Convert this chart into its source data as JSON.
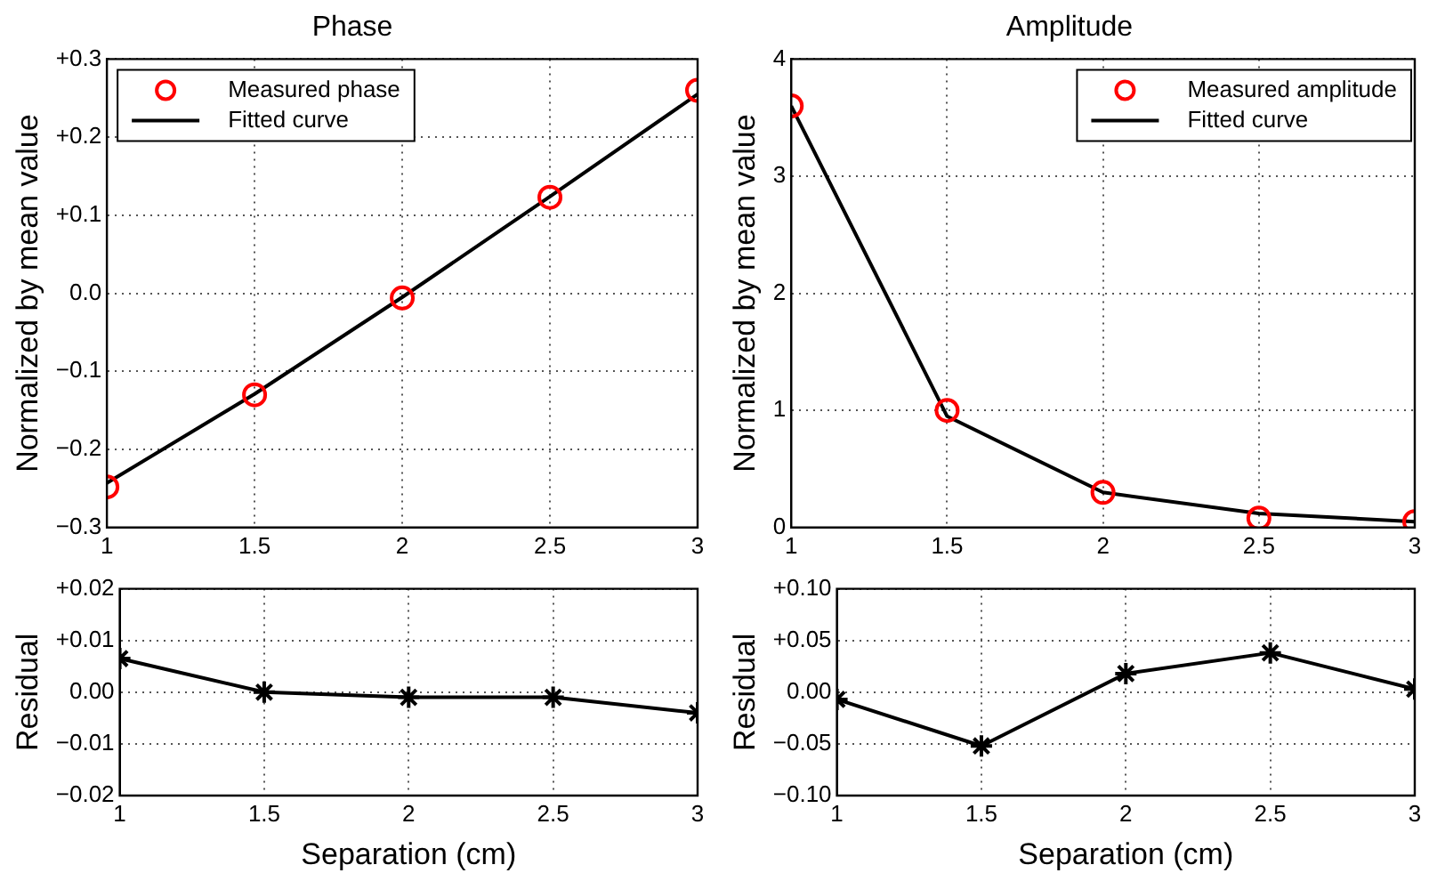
{
  "chart_data": [
    {
      "type": "line",
      "title": "Phase",
      "ylabel": "Normalized by mean value",
      "x": [
        1,
        1.5,
        2,
        2.5,
        3
      ],
      "xlim": [
        1,
        3
      ],
      "xticks": [
        1,
        1.5,
        2,
        2.5,
        3
      ],
      "ylim": [
        -0.3,
        0.3
      ],
      "yticks": [
        {
          "value": -0.3,
          "label": "−0.3"
        },
        {
          "value": -0.2,
          "label": "−0.2"
        },
        {
          "value": -0.1,
          "label": "−0.1"
        },
        {
          "value": 0,
          "label": "0.0"
        },
        {
          "value": 0.1,
          "label": "+0.1"
        },
        {
          "value": 0.2,
          "label": "+0.2"
        },
        {
          "value": 0.3,
          "label": "+0.3"
        }
      ],
      "grid": true,
      "legend": "top left",
      "series": [
        {
          "name": "Measured phase",
          "type": "scatter",
          "marker": "circle",
          "color": "#ff0000",
          "values": [
            -0.248,
            -0.13,
            -0.006,
            0.123,
            0.26
          ]
        },
        {
          "name": "Fitted curve",
          "type": "line",
          "marker": "none",
          "line_style": "solid",
          "color": "#000000",
          "values": [
            -0.243,
            -0.129,
            -0.005,
            0.124,
            0.255
          ]
        }
      ]
    },
    {
      "type": "line",
      "title": "Amplitude",
      "ylabel": "Normalized by mean value",
      "x": [
        1,
        1.5,
        2,
        2.5,
        3
      ],
      "xlim": [
        1,
        3
      ],
      "xticks": [
        1,
        1.5,
        2,
        2.5,
        3
      ],
      "ylim": [
        0,
        4
      ],
      "yticks": [
        0,
        1,
        2,
        3,
        4
      ],
      "grid": true,
      "legend": "top right",
      "series": [
        {
          "name": "Measured amplitude",
          "type": "scatter",
          "marker": "circle",
          "color": "#ff0000",
          "values": [
            3.6,
            1.0,
            0.3,
            0.08,
            0.05
          ]
        },
        {
          "name": "Fitted curve",
          "type": "line",
          "marker": "none",
          "line_style": "solid",
          "color": "#000000",
          "values": [
            3.6,
            0.95,
            0.3,
            0.12,
            0.05
          ]
        }
      ]
    },
    {
      "type": "line",
      "xlabel": "Separation (cm)",
      "ylabel": "Residual",
      "x": [
        1,
        1.5,
        2,
        2.5,
        3
      ],
      "xlim": [
        1,
        3
      ],
      "xticks": [
        1,
        1.5,
        2,
        2.5,
        3
      ],
      "ylim": [
        -0.02,
        0.02
      ],
      "yticks": [
        {
          "value": -0.02,
          "label": "−0.02"
        },
        {
          "value": -0.01,
          "label": "−0.01"
        },
        {
          "value": 0,
          "label": "0.00"
        },
        {
          "value": 0.01,
          "label": "+0.01"
        },
        {
          "value": 0.02,
          "label": "+0.02"
        }
      ],
      "grid": true,
      "series": [
        {
          "type": "line",
          "marker": "cross",
          "line_style": "solid",
          "color": "#000000",
          "values": [
            0.0065,
            0.0,
            -0.001,
            -0.001,
            -0.004
          ]
        }
      ]
    },
    {
      "type": "line",
      "xlabel": "Separation (cm)",
      "ylabel": "Residual",
      "x": [
        1,
        1.5,
        2,
        2.5,
        3
      ],
      "xlim": [
        1,
        3
      ],
      "xticks": [
        1,
        1.5,
        2,
        2.5,
        3
      ],
      "ylim": [
        -0.1,
        0.1
      ],
      "yticks": [
        {
          "value": -0.1,
          "label": "−0.10"
        },
        {
          "value": -0.05,
          "label": "−0.05"
        },
        {
          "value": 0,
          "label": "0.00"
        },
        {
          "value": 0.05,
          "label": "+0.05"
        },
        {
          "value": 0.1,
          "label": "+0.10"
        }
      ],
      "grid": true,
      "series": [
        {
          "type": "line",
          "marker": "cross",
          "line_style": "solid",
          "color": "#000000",
          "values": [
            -0.007,
            -0.052,
            0.018,
            0.038,
            0.003
          ]
        }
      ]
    }
  ]
}
